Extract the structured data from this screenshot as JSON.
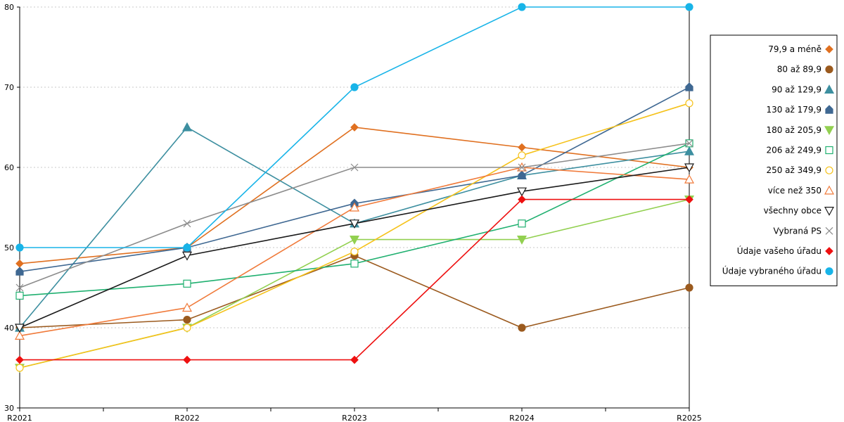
{
  "chart_data": {
    "type": "line",
    "title": "",
    "xlabel": "",
    "ylabel": "",
    "categories": [
      "R2021",
      "R2022",
      "R2023",
      "R2024",
      "R2025"
    ],
    "ylim": [
      30,
      80
    ],
    "yticks": [
      30,
      40,
      50,
      60,
      70,
      80
    ],
    "grid": true,
    "legend_position": "right",
    "series": [
      {
        "name": "79,9 a méně",
        "values": [
          48,
          50,
          65,
          62.5,
          60
        ],
        "color": "#e07020",
        "marker": "diamond",
        "filled": true
      },
      {
        "name": "80 až 89,9",
        "values": [
          40,
          41,
          49,
          40,
          45
        ],
        "color": "#9b5a1e",
        "marker": "circle",
        "filled": true
      },
      {
        "name": "90 až 129,9",
        "values": [
          40,
          65,
          53,
          59,
          62
        ],
        "color": "#3d8fa0",
        "marker": "triangle-up",
        "filled": true
      },
      {
        "name": "130 až 179,9",
        "values": [
          47,
          50,
          55.5,
          59,
          70
        ],
        "color": "#3f6892",
        "marker": "house",
        "filled": true
      },
      {
        "name": "180 až 205,9",
        "values": [
          35,
          40,
          51,
          51,
          56
        ],
        "color": "#92d050",
        "marker": "triangle-down",
        "filled": true
      },
      {
        "name": "206 až 249,9",
        "values": [
          44,
          45.5,
          48,
          53,
          63
        ],
        "color": "#20b070",
        "marker": "square",
        "filled": false
      },
      {
        "name": "250 až 349,9",
        "values": [
          35,
          40,
          49.5,
          61.5,
          68
        ],
        "color": "#f5c21b",
        "marker": "circle",
        "filled": false
      },
      {
        "name": "více než 350",
        "values": [
          39,
          42.5,
          55,
          60,
          58.5
        ],
        "color": "#f07a3a",
        "marker": "triangle-up",
        "filled": false
      },
      {
        "name": "všechny obce",
        "values": [
          40,
          49,
          53,
          57,
          60
        ],
        "color": "#1a1a1a",
        "marker": "triangle-down",
        "filled": false
      },
      {
        "name": "Vybraná PS",
        "values": [
          45,
          53,
          60,
          60,
          63
        ],
        "color": "#8c8c8c",
        "marker": "cross",
        "filled": false
      },
      {
        "name": "Údaje vašeho úřadu",
        "values": [
          36,
          36,
          36,
          56,
          56
        ],
        "color": "#ee1010",
        "marker": "diamond",
        "filled": true
      },
      {
        "name": "Údaje vybraného úřadu",
        "values": [
          50,
          50,
          70,
          80,
          80
        ],
        "color": "#18b4e8",
        "marker": "circle",
        "filled": true
      }
    ]
  }
}
